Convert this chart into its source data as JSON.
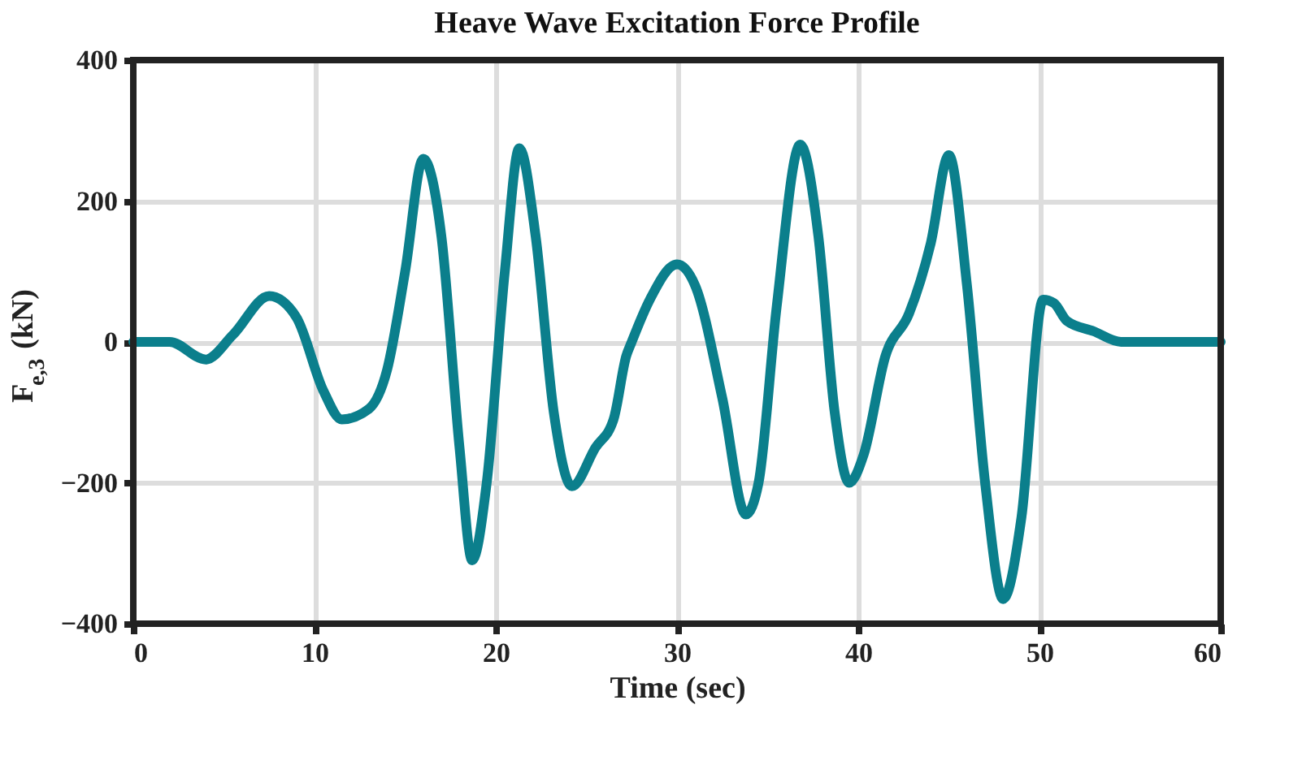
{
  "chart_data": {
    "type": "line",
    "title": "Heave Wave Excitation Force Profile",
    "xlabel": "Time (sec)",
    "ylabel": "F$_{e,3}$(kN)",
    "x": [
      0,
      2,
      4,
      5.5,
      7.5,
      9,
      10.5,
      11.5,
      13,
      14,
      15,
      16,
      17,
      18,
      18.7,
      19.5,
      20.5,
      21.3,
      22.2,
      23.2,
      24.2,
      25.5,
      26.5,
      27.2,
      27.5,
      28.5,
      30,
      31,
      32.5,
      33.8,
      34.5,
      35.5,
      36.8,
      37.8,
      38.7,
      39.5,
      40.3,
      41.5,
      42.8,
      44,
      45,
      46,
      47,
      48,
      49,
      50.2,
      50.8,
      51.5,
      53,
      54.5,
      56,
      60
    ],
    "series": [
      {
        "color": "#0b7f8c",
        "values": [
          0,
          0,
          -25,
          10,
          65,
          35,
          -70,
          -110,
          -95,
          -40,
          100,
          260,
          150,
          -150,
          -310,
          -200,
          100,
          275,
          150,
          -100,
          -205,
          -150,
          -110,
          -20,
          0,
          60,
          110,
          80,
          -80,
          -245,
          -200,
          50,
          280,
          150,
          -100,
          -200,
          -160,
          -20,
          40,
          140,
          265,
          80,
          -200,
          -365,
          -250,
          60,
          55,
          30,
          15,
          0,
          0,
          0
        ]
      }
    ],
    "xlim": [
      0,
      60
    ],
    "xticks": [
      0,
      10,
      20,
      30,
      40,
      50,
      60
    ],
    "ylim": [
      -400,
      400
    ],
    "yticks": [
      -400,
      -200,
      0,
      200,
      400
    ],
    "grid": true,
    "legend": false,
    "marker": "none",
    "line_style": "solid"
  }
}
